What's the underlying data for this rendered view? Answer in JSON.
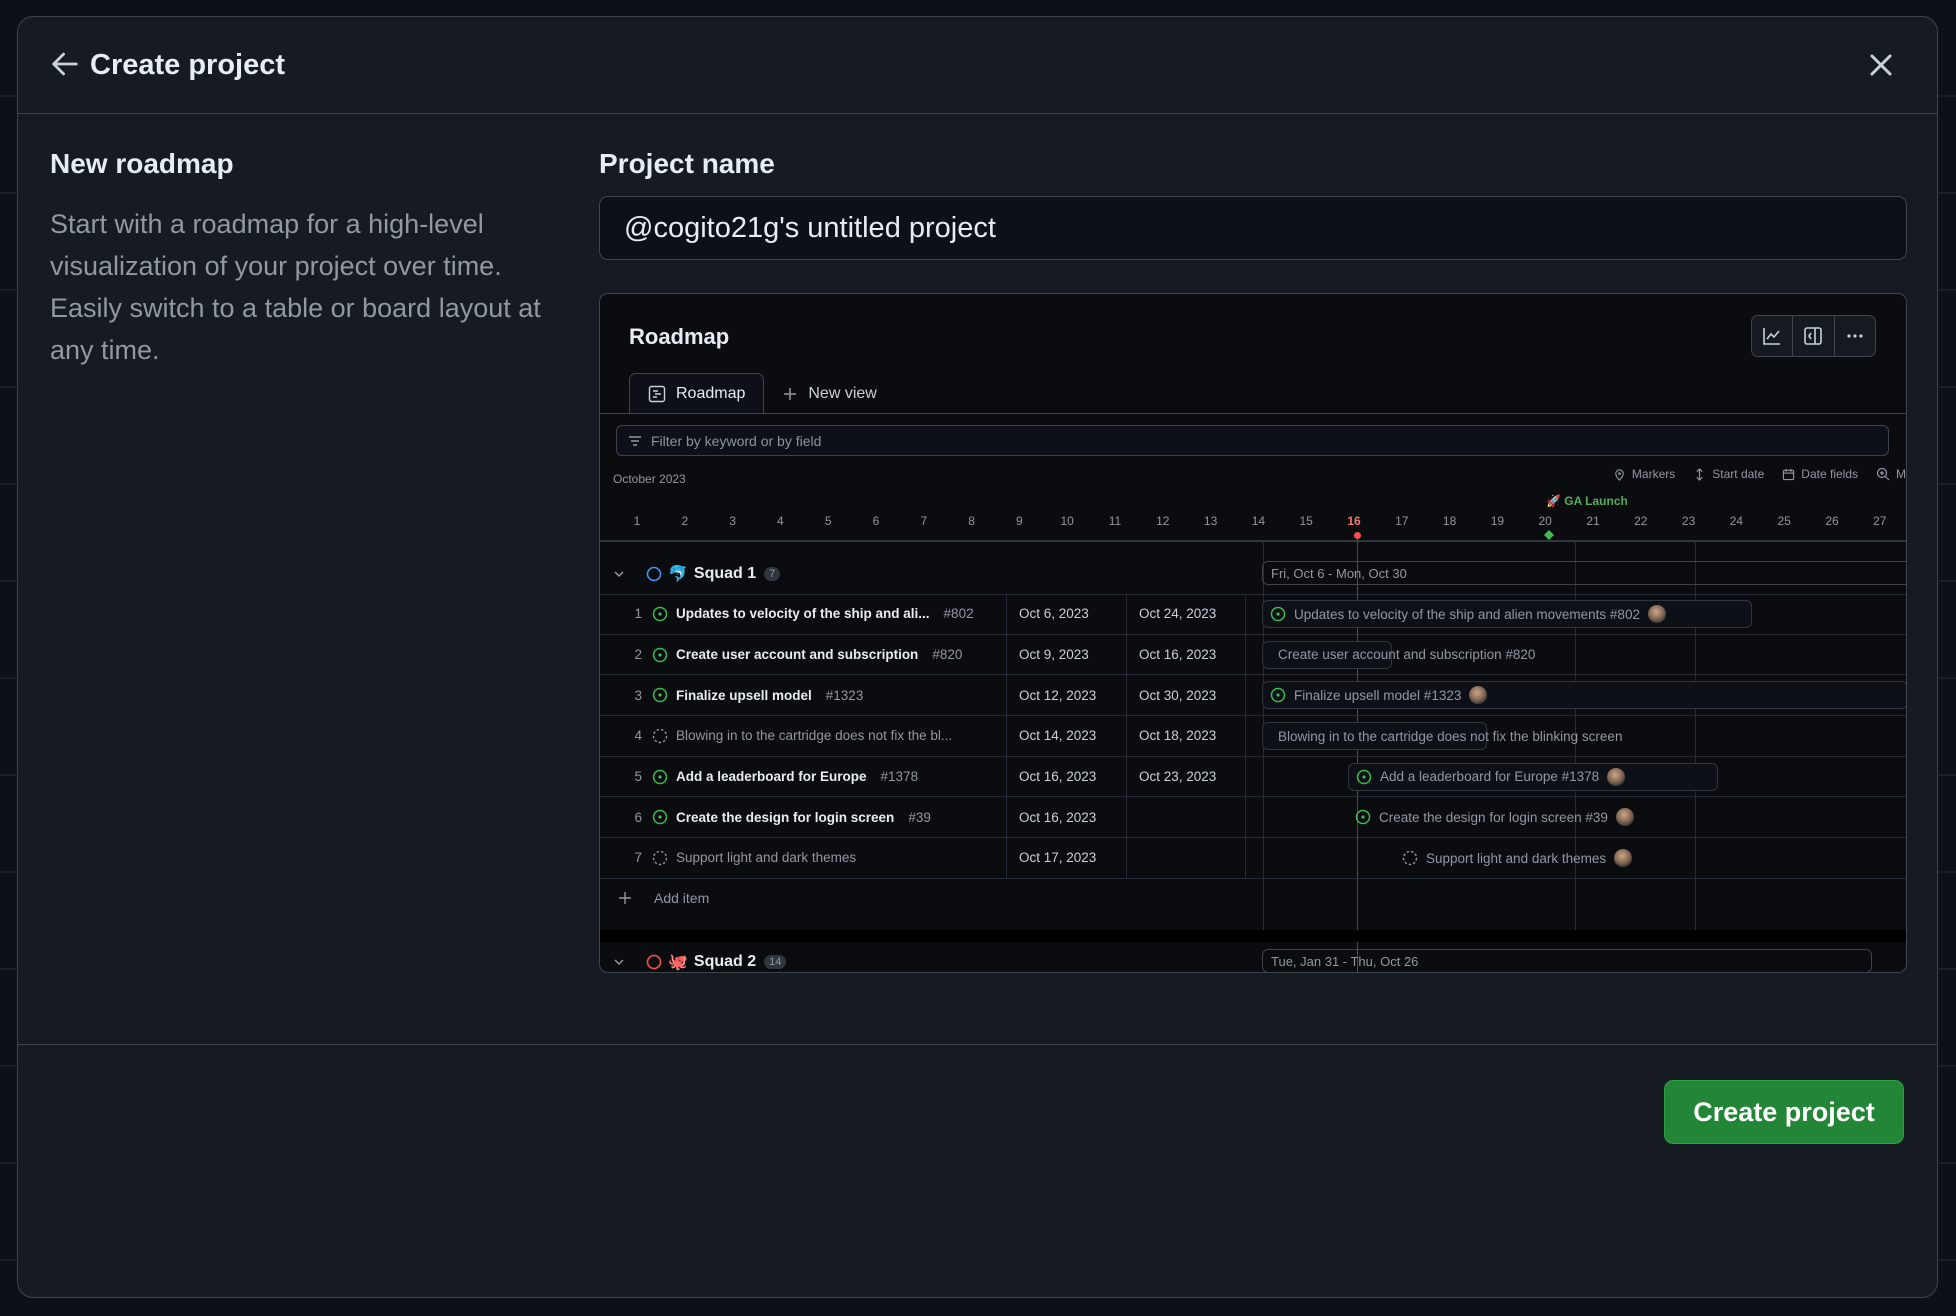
{
  "header": {
    "title": "Create project"
  },
  "template": {
    "name": "New roadmap",
    "description": "Start with a roadmap for a high-level visualization of your project over time. Easily switch to a table or board layout at any time."
  },
  "project_name": {
    "label": "Project name",
    "value": "@cogito21g's untitled project"
  },
  "preview": {
    "title": "Roadmap",
    "tabs": [
      {
        "label": "Roadmap"
      },
      {
        "label": "New view"
      }
    ],
    "filter_placeholder": "Filter by keyword or by field",
    "month": "October 2023",
    "options": {
      "markers": "Markers",
      "start_date": "Start date",
      "date_fields": "Date fields",
      "more": "M"
    },
    "ga_marker": "GA Launch",
    "days": [
      "1",
      "2",
      "3",
      "4",
      "5",
      "6",
      "7",
      "8",
      "9",
      "10",
      "11",
      "12",
      "13",
      "14",
      "15",
      "16",
      "17",
      "18",
      "19",
      "20",
      "21",
      "22",
      "23",
      "24",
      "25",
      "26",
      "27"
    ],
    "today_day": "16",
    "squad1": {
      "name": "Squad 1",
      "emoji": "🐬",
      "count": "7",
      "range": "Fri, Oct 6 - Mon, Oct 30"
    },
    "squad2": {
      "name": "Squad 2",
      "emoji": "🐙",
      "count": "14",
      "range": "Tue, Jan 31 - Thu, Oct 26"
    },
    "items": [
      {
        "num": "1",
        "title": "Updates to velocity of the ship and ali...",
        "ref": "#802",
        "start": "Oct 6, 2023",
        "end": "Oct 24, 2023",
        "bar": "Updates to velocity of the ship and alien movements #802",
        "status": "open"
      },
      {
        "num": "2",
        "title": "Create user account and subscription",
        "ref": "#820",
        "start": "Oct 9, 2023",
        "end": "Oct 16, 2023",
        "bar": "Create user account and subscription #820",
        "status": "open"
      },
      {
        "num": "3",
        "title": "Finalize upsell model",
        "ref": "#1323",
        "start": "Oct 12, 2023",
        "end": "Oct 30, 2023",
        "bar": "Finalize upsell model #1323",
        "status": "open"
      },
      {
        "num": "4",
        "title": "Blowing in to the cartridge does not fix the bl...",
        "ref": "",
        "start": "Oct 14, 2023",
        "end": "Oct 18, 2023",
        "bar": "Blowing in to the cartridge does not fix the blinking screen",
        "status": "draft"
      },
      {
        "num": "5",
        "title": "Add a leaderboard for Europe",
        "ref": "#1378",
        "start": "Oct 16, 2023",
        "end": "Oct 23, 2023",
        "bar": "Add a leaderboard for Europe #1378",
        "status": "open"
      },
      {
        "num": "6",
        "title": "Create the design for login screen",
        "ref": "#39",
        "start": "Oct 16, 2023",
        "end": "",
        "bar": "Create the design for login screen #39",
        "status": "open"
      },
      {
        "num": "7",
        "title": "Support light and dark themes",
        "ref": "",
        "start": "Oct 17, 2023",
        "end": "",
        "bar": "Support light and dark themes",
        "status": "draft"
      }
    ],
    "add_item": "Add item"
  },
  "footer": {
    "create_label": "Create project"
  },
  "colors": {
    "accent_green": "#238636",
    "open_issue": "#3fb950",
    "today": "#f85149"
  }
}
